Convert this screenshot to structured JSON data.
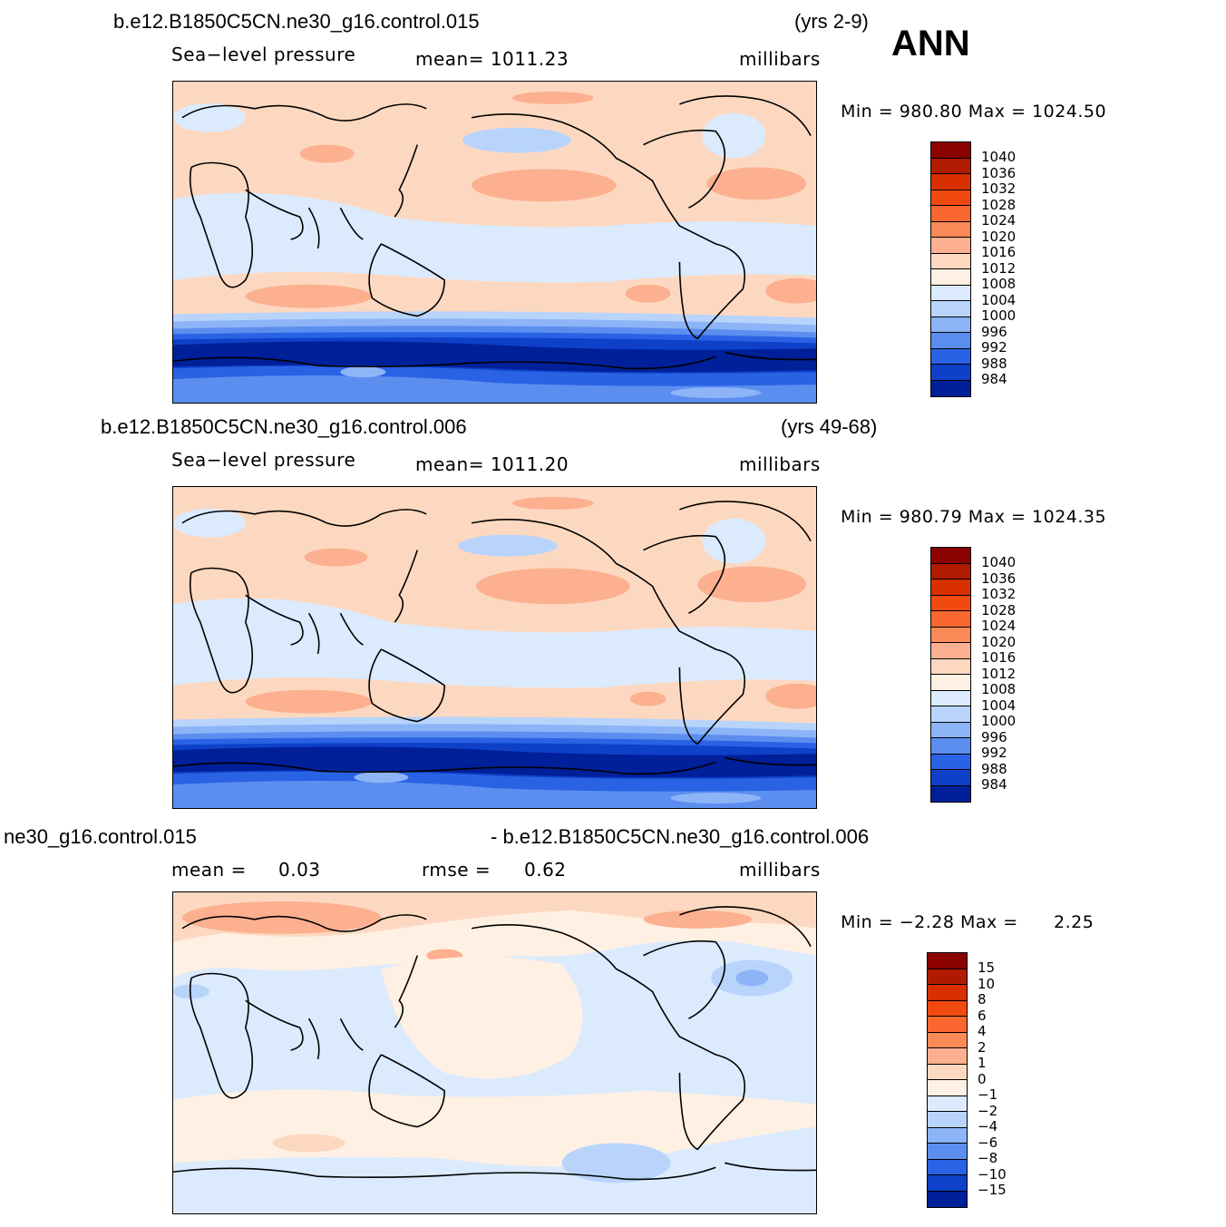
{
  "season": "ANN",
  "panels": [
    {
      "case_name": "b.e12.B1850C5CN.ne30_g16.control.015",
      "years": "(yrs 2-9)",
      "variable": "Sea−level pressure",
      "mean_text": "mean=  1011.23",
      "units": "millibars",
      "min_label": "Min  =  980.80  Max  =  1024.50",
      "map_type": "climatology"
    },
    {
      "case_name": "b.e12.B1850C5CN.ne30_g16.control.006",
      "years": "(yrs 49-68)",
      "variable": "Sea−level pressure",
      "mean_text": "mean=  1011.20",
      "units": "millibars",
      "min_label": "Min  =  980.79  Max  =  1024.35",
      "map_type": "climatology"
    },
    {
      "case_left": "ne30_g16.control.015",
      "case_right": "- b.e12.B1850C5CN.ne30_g16.control.006",
      "mean_label": "mean  =",
      "mean_value": "0.03",
      "rmse_label": "rmse  =",
      "rmse_value": "0.62",
      "units": "millibars",
      "min_label": "Min  =    −2.28  Max  =",
      "max_value": "2.25",
      "map_type": "difference"
    }
  ],
  "colorbar_abs": {
    "labels": [
      "1040",
      "1036",
      "1032",
      "1028",
      "1024",
      "1020",
      "1016",
      "1012",
      "1008",
      "1004",
      "1000",
      "996",
      "992",
      "988",
      "984"
    ],
    "colors": [
      "#8b0000",
      "#b01a00",
      "#d83000",
      "#f04a10",
      "#fa6830",
      "#fb8a58",
      "#fcb090",
      "#fdd8c0",
      "#fff0e4",
      "#dbeafd",
      "#b8d4fb",
      "#8cb4f7",
      "#5c8ef0",
      "#2a62e4",
      "#0e40c8",
      "#00209a"
    ]
  },
  "colorbar_diff": {
    "labels": [
      "15",
      "10",
      "8",
      "6",
      "4",
      "2",
      "1",
      "0",
      "−1",
      "−2",
      "−4",
      "−6",
      "−8",
      "−10",
      "−15"
    ],
    "colors": [
      "#8b0000",
      "#b01a00",
      "#d83000",
      "#f04a10",
      "#fa6830",
      "#fb8a58",
      "#fcb090",
      "#fdd8c0",
      "#fff0e4",
      "#dbeafd",
      "#b8d4fb",
      "#8cb4f7",
      "#5c8ef0",
      "#2a62e4",
      "#0e40c8",
      "#00209a"
    ]
  }
}
